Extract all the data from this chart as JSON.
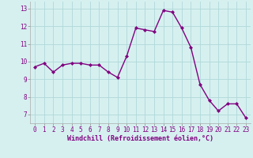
{
  "x": [
    0,
    1,
    2,
    3,
    4,
    5,
    6,
    7,
    8,
    9,
    10,
    11,
    12,
    13,
    14,
    15,
    16,
    17,
    18,
    19,
    20,
    21,
    22,
    23
  ],
  "y": [
    9.7,
    9.9,
    9.4,
    9.8,
    9.9,
    9.9,
    9.8,
    9.8,
    9.4,
    9.1,
    10.3,
    11.9,
    11.8,
    11.7,
    12.9,
    12.8,
    11.9,
    10.8,
    8.7,
    7.8,
    7.2,
    7.6,
    7.6,
    6.8
  ],
  "line_color": "#800080",
  "marker": "D",
  "marker_size": 2.0,
  "linewidth": 1.0,
  "bg_color": "#d6f0f0",
  "grid_color": "#b0d8d8",
  "xlabel": "Windchill (Refroidissement éolien,°C)",
  "xlabel_fontsize": 6.0,
  "yticks": [
    7,
    8,
    9,
    10,
    11,
    12,
    13
  ],
  "xticks": [
    0,
    1,
    2,
    3,
    4,
    5,
    6,
    7,
    8,
    9,
    10,
    11,
    12,
    13,
    14,
    15,
    16,
    17,
    18,
    19,
    20,
    21,
    22,
    23
  ],
  "ylim": [
    6.5,
    13.4
  ],
  "xlim": [
    -0.5,
    23.5
  ],
  "tick_fontsize": 5.5,
  "fig_width": 3.2,
  "fig_height": 2.0,
  "dpi": 100
}
